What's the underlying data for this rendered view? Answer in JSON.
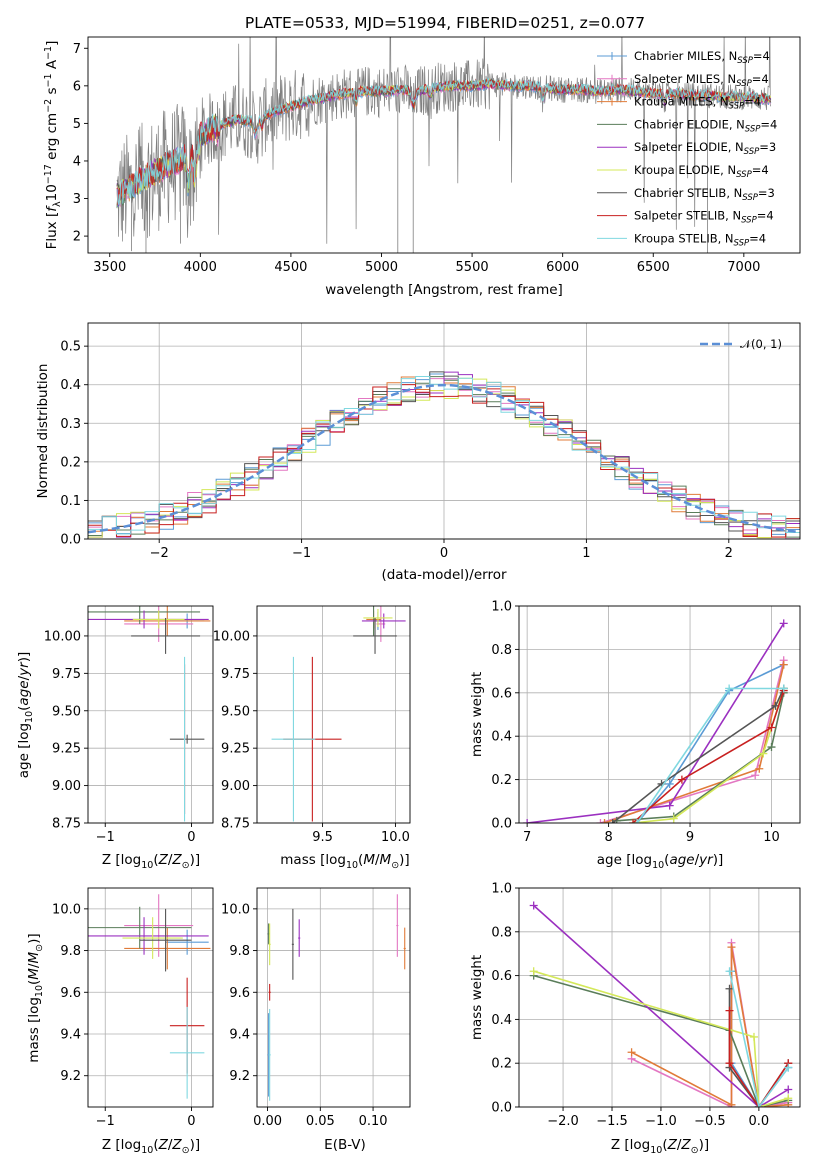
{
  "title": "PLATE=0533, MJD=51994, FIBERID=0251, z=0.077",
  "colors": {
    "Chabrier MILES": "#5b9bd5",
    "Salpeter MILES": "#e377c2",
    "Kroupa MILES": "#e07b39",
    "Chabrier ELODIE": "#5a7d5a",
    "Salpeter ELODIE": "#9b30c0",
    "Kroupa ELODIE": "#d4e85a",
    "Chabrier STELIB": "#555555",
    "Salpeter STELIB": "#c82020",
    "Kroupa STELIB": "#80d8e0",
    "data": "#7f7f7f",
    "gaussian": "#5b8fd6"
  },
  "chart_data": [
    {
      "type": "line",
      "title": "PLATE=0533, MJD=51994, FIBERID=0251, z=0.077",
      "xlabel": "wavelength [Angstrom, rest frame]",
      "ylabel_parts": [
        "Flux [",
        "f",
        "λ",
        "10",
        "−17",
        " erg cm",
        "−2",
        " s",
        "−1",
        " A",
        "−1",
        "]"
      ],
      "xlim": [
        3380,
        7310
      ],
      "ylim": [
        1.55,
        7.3
      ],
      "xticks": [
        3500,
        4000,
        4500,
        5000,
        5500,
        6000,
        6500,
        7000
      ],
      "yticks": [
        2,
        3,
        4,
        5,
        6,
        7
      ],
      "legend": [
        {
          "name": "Chabrier MILES",
          "sub": "SSP",
          "n": "=4"
        },
        {
          "name": "Salpeter MILES",
          "sub": "SSP",
          "n": "=4"
        },
        {
          "name": "Kroupa MILES",
          "sub": "SSP",
          "n": "=4"
        },
        {
          "name": "Chabrier ELODIE",
          "sub": "SSP",
          "n": "=4"
        },
        {
          "name": "Salpeter ELODIE",
          "sub": "SSP",
          "n": "=3"
        },
        {
          "name": "Kroupa ELODIE",
          "sub": "SSP",
          "n": "=4"
        },
        {
          "name": "Chabrier STELIB",
          "sub": "SSP",
          "n": "=3"
        },
        {
          "name": "Salpeter STELIB",
          "sub": "SSP",
          "n": "=4"
        },
        {
          "name": "Kroupa STELIB",
          "sub": "SSP",
          "n": "=4"
        }
      ],
      "continuum": [
        [
          3540,
          3.4
        ],
        [
          3600,
          3.6
        ],
        [
          3700,
          3.9
        ],
        [
          3800,
          4.2
        ],
        [
          3900,
          4.4
        ],
        [
          4000,
          4.7
        ],
        [
          4100,
          4.95
        ],
        [
          4200,
          5.1
        ],
        [
          4300,
          5.05
        ],
        [
          4400,
          5.3
        ],
        [
          4500,
          5.45
        ],
        [
          4600,
          5.6
        ],
        [
          4700,
          5.7
        ],
        [
          4800,
          5.8
        ],
        [
          4900,
          5.85
        ],
        [
          5000,
          5.85
        ],
        [
          5100,
          5.9
        ],
        [
          5200,
          5.85
        ],
        [
          5300,
          5.95
        ],
        [
          5400,
          6.0
        ],
        [
          5500,
          6.0
        ],
        [
          5600,
          6.05
        ],
        [
          5700,
          6.0
        ],
        [
          5800,
          6.0
        ],
        [
          5900,
          5.95
        ],
        [
          6000,
          5.9
        ],
        [
          6100,
          5.9
        ],
        [
          6200,
          5.85
        ],
        [
          6300,
          5.9
        ],
        [
          6400,
          5.85
        ],
        [
          6500,
          5.8
        ],
        [
          6600,
          5.8
        ],
        [
          6700,
          5.75
        ],
        [
          6800,
          5.75
        ],
        [
          6900,
          5.7
        ],
        [
          7000,
          5.7
        ],
        [
          7150,
          5.65
        ]
      ]
    },
    {
      "type": "line",
      "xlabel": "(data-model)/error",
      "ylabel": "Normed distribution",
      "xlim": [
        -2.5,
        2.5
      ],
      "ylim": [
        0,
        0.56
      ],
      "xticks": [
        -2,
        -1,
        0,
        1,
        2
      ],
      "yticks": [
        0.0,
        0.1,
        0.2,
        0.3,
        0.4,
        0.5
      ],
      "legend": "𝒩(0, 1)",
      "reference_curve": "gaussian mean 0 sigma 1",
      "bin_width": 0.1
    },
    {
      "type": "scatter",
      "xlabel": "Z [log10(Z/Z⊙)]",
      "ylabel": "age  [log10(age/yr)]",
      "xlim": [
        -1.2,
        0.25
      ],
      "ylim": [
        8.75,
        10.2
      ],
      "xticks": [
        -1,
        0
      ],
      "yticks": [
        8.75,
        9.0,
        9.25,
        9.5,
        9.75,
        10.0
      ],
      "points": [
        {
          "series": "Chabrier MILES",
          "x": -0.05,
          "xerr": 0.2,
          "y": 10.1,
          "yerr": 0.05
        },
        {
          "series": "Salpeter MILES",
          "x": -0.38,
          "xerr": 0.4,
          "y": 10.08,
          "yerr": 0.12
        },
        {
          "series": "Kroupa MILES",
          "x": -0.28,
          "xerr": 0.5,
          "y": 10.1,
          "yerr": 0.1
        },
        {
          "series": "Chabrier ELODIE",
          "x": -0.6,
          "xerr": 0.7,
          "y": 10.16,
          "yerr": 0.08
        },
        {
          "series": "Salpeter ELODIE",
          "x": -0.55,
          "xerr": 0.75,
          "y": 10.11,
          "yerr": 0.06
        },
        {
          "series": "Kroupa ELODIE",
          "x": -0.38,
          "xerr": 0.3,
          "y": 10.11,
          "yerr": 0.06
        },
        {
          "series": "Chabrier STELIB",
          "x": -0.3,
          "xerr": 0.4,
          "y": 10.0,
          "yerr": 0.12
        },
        {
          "series": "Chabrier STELIB",
          "x": -0.05,
          "xerr": 0.2,
          "y": 9.31,
          "yerr": 0.03
        },
        {
          "series": "Salpeter STELIB",
          "x": -0.08,
          "xerr": 0.01,
          "y": 9.31,
          "yerr": 0.5
        },
        {
          "series": "Kroupa STELIB",
          "x": -0.08,
          "xerr": 0.01,
          "y": 9.31,
          "yerr": 0.55
        }
      ]
    },
    {
      "type": "scatter",
      "xlabel": "mass [log10(M/M⊙)]",
      "xlim": [
        9.05,
        10.1
      ],
      "ylim": [
        8.75,
        10.2
      ],
      "xticks": [
        9.5,
        10.0
      ],
      "yticks": [
        8.75,
        9.0,
        9.25,
        9.5,
        9.75,
        10.0
      ],
      "points": [
        {
          "series": "Chabrier MILES",
          "x": 9.88,
          "xerr": 0.03,
          "y": 10.1,
          "yerr": 0.06
        },
        {
          "series": "Salpeter MILES",
          "x": 9.9,
          "xerr": 0.03,
          "y": 10.08,
          "yerr": 0.12
        },
        {
          "series": "Kroupa MILES",
          "x": 9.85,
          "xerr": 0.05,
          "y": 10.11,
          "yerr": 0.06
        },
        {
          "series": "Chabrier ELODIE",
          "x": 9.85,
          "xerr": 0.05,
          "y": 10.1,
          "yerr": 0.1
        },
        {
          "series": "Salpeter ELODIE",
          "x": 9.92,
          "xerr": 0.15,
          "y": 10.1,
          "yerr": 0.05
        },
        {
          "series": "Kroupa ELODIE",
          "x": 9.88,
          "xerr": 0.1,
          "y": 10.12,
          "yerr": 0.06
        },
        {
          "series": "Chabrier STELIB",
          "x": 9.86,
          "xerr": 0.15,
          "y": 10.0,
          "yerr": 0.12
        },
        {
          "series": "Salpeter STELIB",
          "x": 9.43,
          "xerr": 0.2,
          "y": 9.31,
          "yerr": 0.55
        },
        {
          "series": "Kroupa STELIB",
          "x": 9.3,
          "xerr": 0.15,
          "y": 9.31,
          "yerr": 0.55
        }
      ]
    },
    {
      "type": "line",
      "xlabel": "age  [log10(age/yr)]",
      "ylabel": "mass weight",
      "xlim": [
        6.9,
        10.35
      ],
      "ylim": [
        0,
        1.0
      ],
      "xticks": [
        7,
        8,
        9,
        10
      ],
      "yticks": [
        0.0,
        0.2,
        0.4,
        0.6,
        0.8,
        1.0
      ],
      "series": [
        {
          "name": "Chabrier MILES",
          "points": [
            [
              8.35,
              0.0
            ],
            [
              8.75,
              0.18
            ],
            [
              9.48,
              0.61
            ],
            [
              10.15,
              0.73
            ]
          ]
        },
        {
          "name": "Salpeter MILES",
          "points": [
            [
              7.9,
              0.0
            ],
            [
              9.8,
              0.22
            ],
            [
              10.15,
              0.75
            ]
          ]
        },
        {
          "name": "Kroupa MILES",
          "points": [
            [
              7.95,
              0.0
            ],
            [
              9.85,
              0.25
            ],
            [
              10.15,
              0.73
            ]
          ]
        },
        {
          "name": "Chabrier ELODIE",
          "points": [
            [
              8.1,
              0.01
            ],
            [
              8.8,
              0.03
            ],
            [
              10.0,
              0.35
            ],
            [
              10.15,
              0.6
            ]
          ]
        },
        {
          "name": "Salpeter ELODIE",
          "points": [
            [
              7.0,
              0.0
            ],
            [
              8.75,
              0.08
            ],
            [
              10.15,
              0.92
            ]
          ]
        },
        {
          "name": "Kroupa ELODIE",
          "points": [
            [
              8.3,
              0.0
            ],
            [
              8.8,
              0.02
            ],
            [
              9.9,
              0.32
            ],
            [
              10.15,
              0.62
            ]
          ]
        },
        {
          "name": "Chabrier STELIB",
          "points": [
            [
              8.05,
              0.0
            ],
            [
              8.65,
              0.18
            ],
            [
              10.05,
              0.54
            ],
            [
              10.15,
              0.62
            ]
          ]
        },
        {
          "name": "Salpeter STELIB",
          "points": [
            [
              8.3,
              0.0
            ],
            [
              8.9,
              0.2
            ],
            [
              10.0,
              0.44
            ],
            [
              10.15,
              0.61
            ]
          ]
        },
        {
          "name": "Kroupa STELIB",
          "points": [
            [
              8.35,
              0.0
            ],
            [
              9.48,
              0.62
            ],
            [
              10.15,
              0.62
            ]
          ]
        }
      ]
    },
    {
      "type": "scatter",
      "xlabel": "Z [log10(Z/Z⊙)]",
      "ylabel": "mass [log10(M/M⊙)]",
      "xlim": [
        -1.2,
        0.25
      ],
      "ylim": [
        9.05,
        10.1
      ],
      "xticks": [
        -1,
        0
      ],
      "yticks": [
        9.2,
        9.4,
        9.6,
        9.8,
        10.0
      ],
      "points": [
        {
          "series": "Chabrier MILES",
          "x": -0.05,
          "xerr": 0.25,
          "y": 9.84,
          "yerr": 0.06
        },
        {
          "series": "Salpeter MILES",
          "x": -0.38,
          "xerr": 0.4,
          "y": 9.92,
          "yerr": 0.15
        },
        {
          "series": "Kroupa MILES",
          "x": -0.28,
          "xerr": 0.5,
          "y": 9.81,
          "yerr": 0.1
        },
        {
          "series": "Chabrier ELODIE",
          "x": -0.6,
          "xerr": 0.6,
          "y": 9.91,
          "yerr": 0.1
        },
        {
          "series": "Salpeter ELODIE",
          "x": -0.55,
          "xerr": 0.75,
          "y": 9.87,
          "yerr": 0.09
        },
        {
          "series": "Kroupa ELODIE",
          "x": -0.45,
          "xerr": 0.35,
          "y": 9.86,
          "yerr": 0.1
        },
        {
          "series": "Chabrier STELIB",
          "x": -0.3,
          "xerr": 0.3,
          "y": 9.85,
          "yerr": 0.15
        },
        {
          "series": "Salpeter STELIB",
          "x": -0.05,
          "xerr": 0.2,
          "y": 9.44,
          "yerr": 0.23
        },
        {
          "series": "Kroupa STELIB",
          "x": -0.05,
          "xerr": 0.2,
          "y": 9.31,
          "yerr": 0.22
        }
      ]
    },
    {
      "type": "scatter",
      "xlabel": "E(B-V)",
      "xlim": [
        -0.01,
        0.135
      ],
      "ylim": [
        9.05,
        10.1
      ],
      "xticks": [
        0.0,
        0.05,
        0.1
      ],
      "yticks": [
        9.2,
        9.4,
        9.6,
        9.8,
        10.0
      ],
      "points": [
        {
          "series": "Chabrier MILES",
          "x": 0.001,
          "xerr": 0.001,
          "y": 9.3,
          "yerr": 0.2
        },
        {
          "series": "Salpeter MILES",
          "x": 0.123,
          "xerr": 0.001,
          "y": 9.92,
          "yerr": 0.15
        },
        {
          "series": "Kroupa MILES",
          "x": 0.13,
          "xerr": 0.001,
          "y": 9.81,
          "yerr": 0.1
        },
        {
          "series": "Chabrier ELODIE",
          "x": 0.001,
          "xerr": 0.001,
          "y": 9.88,
          "yerr": 0.05
        },
        {
          "series": "Salpeter ELODIE",
          "x": 0.03,
          "xerr": 0.001,
          "y": 9.86,
          "yerr": 0.09
        },
        {
          "series": "Kroupa ELODIE",
          "x": 0.002,
          "xerr": 0.001,
          "y": 9.83,
          "yerr": 0.1
        },
        {
          "series": "Chabrier STELIB",
          "x": 0.024,
          "xerr": 0.001,
          "y": 9.83,
          "yerr": 0.17
        },
        {
          "series": "Salpeter STELIB",
          "x": 0.002,
          "xerr": 0.001,
          "y": 9.6,
          "yerr": 0.04
        },
        {
          "series": "Kroupa STELIB",
          "x": 0.002,
          "xerr": 0.001,
          "y": 9.3,
          "yerr": 0.22
        }
      ]
    },
    {
      "type": "line",
      "xlabel": "Z [log10(Z/Z⊙)]",
      "ylabel": "mass weight",
      "xlim": [
        -2.45,
        0.42
      ],
      "ylim": [
        0,
        1.0
      ],
      "xticks": [
        -2.0,
        -1.5,
        -1.0,
        -0.5,
        0.0
      ],
      "yticks": [
        0.0,
        0.2,
        0.4,
        0.6,
        0.8,
        1.0
      ],
      "series": [
        {
          "name": "Chabrier MILES",
          "points": [
            [
              -0.28,
              0.62
            ],
            [
              -0.28,
              0.2
            ],
            [
              0.0,
              0.0
            ],
            [
              0.3,
              0.18
            ]
          ]
        },
        {
          "name": "Salpeter MILES",
          "points": [
            [
              -1.3,
              0.22
            ],
            [
              -0.28,
              0.0
            ],
            [
              -0.28,
              0.75
            ],
            [
              0.0,
              0.0
            ],
            [
              0.3,
              0.02
            ]
          ]
        },
        {
          "name": "Kroupa MILES",
          "points": [
            [
              -1.3,
              0.25
            ],
            [
              -0.28,
              0.01
            ],
            [
              -0.28,
              0.73
            ],
            [
              0.0,
              0.0
            ],
            [
              0.3,
              0.01
            ]
          ]
        },
        {
          "name": "Chabrier ELODIE",
          "points": [
            [
              -2.3,
              0.6
            ],
            [
              -0.3,
              0.35
            ],
            [
              0.0,
              0.0
            ],
            [
              0.3,
              0.03
            ]
          ]
        },
        {
          "name": "Salpeter ELODIE",
          "points": [
            [
              -2.3,
              0.92
            ],
            [
              0.0,
              0.0
            ],
            [
              0.3,
              0.08
            ]
          ]
        },
        {
          "name": "Kroupa ELODIE",
          "points": [
            [
              -2.3,
              0.62
            ],
            [
              -0.05,
              0.32
            ],
            [
              0.0,
              0.0
            ],
            [
              0.3,
              0.04
            ]
          ]
        },
        {
          "name": "Chabrier STELIB",
          "points": [
            [
              -0.3,
              0.54
            ],
            [
              -0.3,
              0.18
            ],
            [
              0.0,
              0.0
            ],
            [
              0.3,
              0.2
            ]
          ]
        },
        {
          "name": "Salpeter STELIB",
          "points": [
            [
              -0.3,
              0.44
            ],
            [
              -0.3,
              0.2
            ],
            [
              0.0,
              0.0
            ],
            [
              0.3,
              0.2
            ]
          ]
        },
        {
          "name": "Kroupa STELIB",
          "points": [
            [
              -0.3,
              0.62
            ],
            [
              0.0,
              0.0
            ],
            [
              0.3,
              0.18
            ]
          ]
        }
      ]
    }
  ]
}
